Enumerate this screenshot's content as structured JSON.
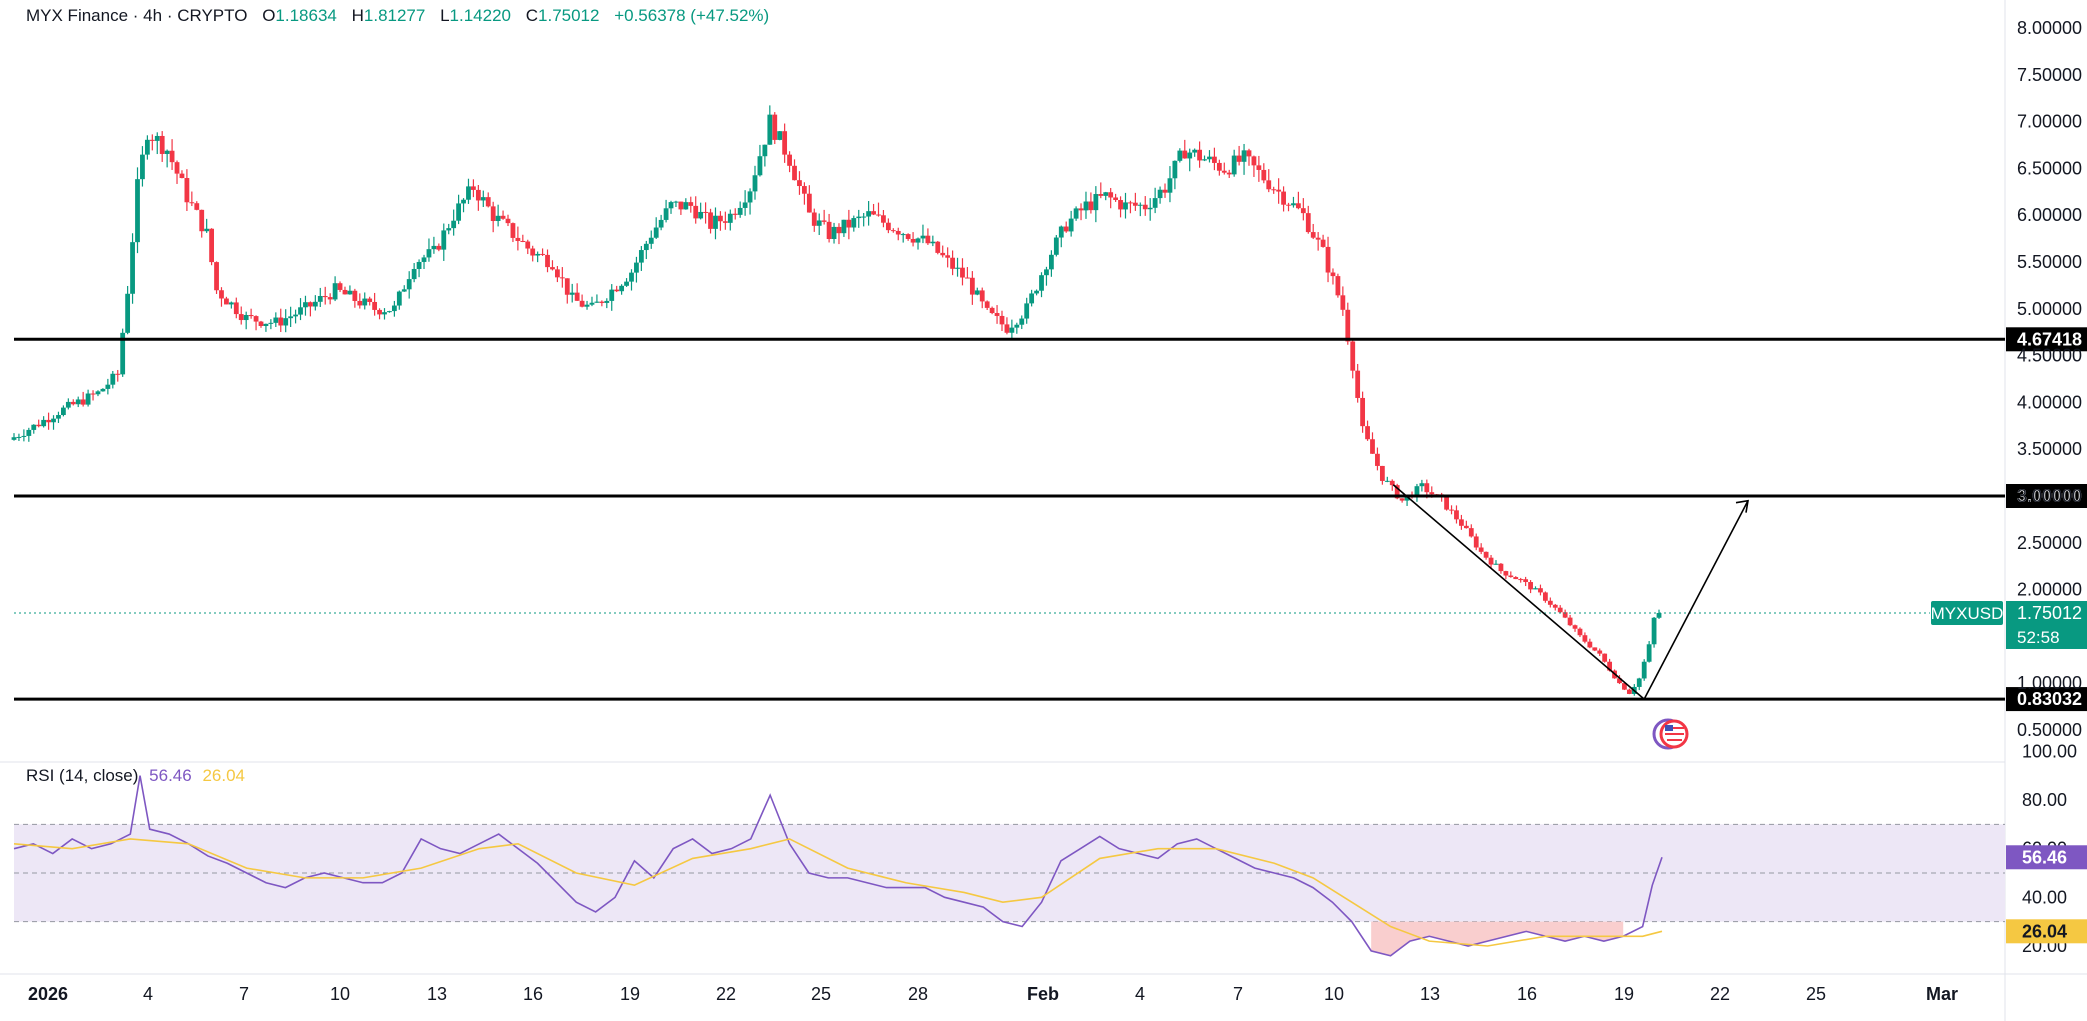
{
  "header": {
    "symbol": "MYX Finance",
    "interval": "4h",
    "exchange": "CRYPTO",
    "open_label": "O",
    "open": "1.18634",
    "high_label": "H",
    "high": "1.81277",
    "low_label": "L",
    "low": "1.14220",
    "close_label": "C",
    "close": "1.75012",
    "change": "+0.56378 (+47.52%)"
  },
  "price_badge": {
    "ticker": "MYXUSD",
    "price": "1.75012",
    "countdown": "52:58"
  },
  "rsi_legend": {
    "name": "RSI (14, close)",
    "rsi_value": "56.46",
    "ma_value": "26.04"
  },
  "colors": {
    "up": "#089981",
    "down": "#f23645",
    "level_line": "#000000",
    "rsi_line": "#7e57c2",
    "rsi_ma": "#f5c842",
    "rsi_band": "#ede7f6",
    "oversold_fill": "#f8c9c9"
  },
  "chart_data": [
    {
      "type": "candlestick",
      "x_ticks": [
        "2026",
        "4",
        "7",
        "10",
        "13",
        "16",
        "19",
        "22",
        "25",
        "28",
        "Feb",
        "4",
        "7",
        "10",
        "13",
        "16",
        "19",
        "22",
        "25",
        "Mar"
      ],
      "y_ticks": [
        "8.00000",
        "7.50000",
        "7.00000",
        "6.50000",
        "6.00000",
        "5.50000",
        "5.00000",
        "4.50000",
        "4.00000",
        "3.50000",
        "3.00000",
        "2.50000",
        "2.00000",
        "1.50000",
        "1.00000",
        "0.50000"
      ],
      "ylim": [
        0.3,
        8.1
      ],
      "price_path": [
        [
          1.5,
          3.6
        ],
        [
          2.8,
          3.75
        ],
        [
          4.0,
          3.9
        ],
        [
          5.0,
          4.0
        ],
        [
          6.0,
          4.1
        ],
        [
          7.0,
          4.3
        ],
        [
          7.5,
          5.2
        ],
        [
          8.0,
          6.3
        ],
        [
          8.5,
          6.9
        ],
        [
          9.5,
          6.7
        ],
        [
          10.5,
          6.2
        ],
        [
          11.5,
          5.8
        ],
        [
          12.0,
          5.2
        ],
        [
          13.5,
          4.9
        ],
        [
          15.0,
          4.85
        ],
        [
          16.5,
          5.0
        ],
        [
          18.0,
          5.2
        ],
        [
          19.0,
          5.1
        ],
        [
          20.0,
          5.0
        ],
        [
          21.0,
          5.0
        ],
        [
          22.0,
          5.5
        ],
        [
          23.0,
          5.6
        ],
        [
          24.0,
          6.0
        ],
        [
          25.0,
          6.3
        ],
        [
          26.0,
          6.0
        ],
        [
          27.0,
          5.8
        ],
        [
          28.0,
          5.6
        ],
        [
          29.0,
          5.5
        ],
        [
          30.0,
          5.1
        ],
        [
          31.0,
          5.0
        ],
        [
          32.0,
          5.2
        ],
        [
          33.0,
          5.4
        ],
        [
          34.0,
          5.8
        ],
        [
          35.0,
          6.1
        ],
        [
          36.0,
          6.1
        ],
        [
          37.0,
          5.9
        ],
        [
          38.0,
          6.0
        ],
        [
          39.0,
          6.3
        ],
        [
          40.0,
          7.0
        ],
        [
          41.0,
          6.6
        ],
        [
          42.0,
          6.0
        ],
        [
          43.0,
          5.8
        ],
        [
          44.0,
          5.9
        ],
        [
          45.0,
          6.0
        ],
        [
          46.0,
          5.9
        ],
        [
          47.0,
          5.8
        ],
        [
          48.0,
          5.7
        ],
        [
          49.0,
          5.5
        ],
        [
          50.0,
          5.3
        ],
        [
          51.0,
          4.95
        ],
        [
          52.0,
          4.8
        ],
        [
          53.0,
          5.0
        ],
        [
          54.0,
          5.5
        ],
        [
          55.0,
          5.9
        ],
        [
          56.0,
          6.1
        ],
        [
          57.0,
          6.2
        ],
        [
          58.0,
          6.1
        ],
        [
          59.0,
          6.1
        ],
        [
          60.0,
          6.3
        ],
        [
          61.0,
          6.7
        ],
        [
          62.0,
          6.6
        ],
        [
          63.0,
          6.5
        ],
        [
          64.0,
          6.6
        ],
        [
          65.0,
          6.4
        ],
        [
          66.0,
          6.2
        ],
        [
          67.0,
          6.0
        ],
        [
          68.0,
          5.6
        ],
        [
          69.0,
          5.0
        ],
        [
          69.5,
          4.4
        ],
        [
          70.0,
          3.7
        ],
        [
          71.0,
          3.2
        ],
        [
          72.0,
          2.95
        ],
        [
          73.0,
          3.1
        ],
        [
          74.0,
          2.95
        ],
        [
          75.0,
          2.7
        ],
        [
          76.0,
          2.4
        ],
        [
          77.0,
          2.2
        ],
        [
          78.0,
          2.1
        ],
        [
          79.0,
          1.95
        ],
        [
          80.0,
          1.75
        ],
        [
          81.0,
          1.5
        ],
        [
          82.0,
          1.3
        ],
        [
          83.0,
          1.0
        ],
        [
          83.5,
          0.9
        ],
        [
          84.0,
          1.05
        ],
        [
          84.5,
          1.4
        ],
        [
          84.8,
          1.75
        ]
      ],
      "current_price": 1.75012,
      "levels": [
        4.67418,
        3.0,
        0.83032
      ],
      "level_labels": [
        "4.67418",
        "3.00000",
        "0.83032"
      ],
      "trendline": [
        [
          71.3,
          3.12
        ],
        [
          84.0,
          0.83
        ]
      ],
      "projection": [
        [
          84.0,
          0.83
        ],
        [
          88.6,
          2.95
        ]
      ]
    },
    {
      "type": "line",
      "name": "RSI (14, close)",
      "y_ticks": [
        "100.00",
        "80.00",
        "60.00",
        "40.00",
        "20.00"
      ],
      "ylim": [
        8,
        100
      ],
      "band": [
        30,
        70
      ],
      "midline": 50,
      "rsi_path": [
        [
          0,
          60
        ],
        [
          1,
          62
        ],
        [
          2,
          58
        ],
        [
          3,
          64
        ],
        [
          4,
          60
        ],
        [
          5,
          62
        ],
        [
          6,
          66
        ],
        [
          6.5,
          90
        ],
        [
          7,
          68
        ],
        [
          8,
          66
        ],
        [
          9,
          62
        ],
        [
          10,
          57
        ],
        [
          11,
          54
        ],
        [
          12,
          50
        ],
        [
          13,
          46
        ],
        [
          14,
          44
        ],
        [
          15,
          48
        ],
        [
          16,
          50
        ],
        [
          17,
          48
        ],
        [
          18,
          46
        ],
        [
          19,
          46
        ],
        [
          20,
          50
        ],
        [
          21,
          64
        ],
        [
          22,
          60
        ],
        [
          23,
          58
        ],
        [
          24,
          62
        ],
        [
          25,
          66
        ],
        [
          26,
          60
        ],
        [
          27,
          54
        ],
        [
          28,
          46
        ],
        [
          29,
          38
        ],
        [
          30,
          34
        ],
        [
          31,
          40
        ],
        [
          32,
          55
        ],
        [
          33,
          48
        ],
        [
          34,
          60
        ],
        [
          35,
          64
        ],
        [
          36,
          58
        ],
        [
          37,
          60
        ],
        [
          38,
          64
        ],
        [
          39,
          82
        ],
        [
          40,
          62
        ],
        [
          41,
          50
        ],
        [
          42,
          48
        ],
        [
          43,
          48
        ],
        [
          44,
          46
        ],
        [
          45,
          44
        ],
        [
          46,
          44
        ],
        [
          47,
          44
        ],
        [
          48,
          40
        ],
        [
          49,
          38
        ],
        [
          50,
          36
        ],
        [
          51,
          30
        ],
        [
          52,
          28
        ],
        [
          53,
          38
        ],
        [
          54,
          55
        ],
        [
          55,
          60
        ],
        [
          56,
          65
        ],
        [
          57,
          60
        ],
        [
          58,
          58
        ],
        [
          59,
          56
        ],
        [
          60,
          62
        ],
        [
          61,
          64
        ],
        [
          62,
          60
        ],
        [
          63,
          56
        ],
        [
          64,
          52
        ],
        [
          65,
          50
        ],
        [
          66,
          48
        ],
        [
          67,
          44
        ],
        [
          68,
          38
        ],
        [
          69,
          30
        ],
        [
          70,
          18
        ],
        [
          71,
          16
        ],
        [
          72,
          22
        ],
        [
          73,
          24
        ],
        [
          74,
          22
        ],
        [
          75,
          20
        ],
        [
          76,
          22
        ],
        [
          77,
          24
        ],
        [
          78,
          26
        ],
        [
          79,
          24
        ],
        [
          80,
          22
        ],
        [
          81,
          24
        ],
        [
          82,
          22
        ],
        [
          83,
          24
        ],
        [
          84,
          28
        ],
        [
          84.5,
          45
        ],
        [
          85.0,
          56.46
        ]
      ],
      "ma_path": [
        [
          0,
          62
        ],
        [
          3,
          60
        ],
        [
          6,
          64
        ],
        [
          9,
          62
        ],
        [
          12,
          52
        ],
        [
          15,
          48
        ],
        [
          18,
          48
        ],
        [
          21,
          52
        ],
        [
          24,
          60
        ],
        [
          26,
          62
        ],
        [
          29,
          50
        ],
        [
          32,
          45
        ],
        [
          35,
          56
        ],
        [
          38,
          60
        ],
        [
          40,
          64
        ],
        [
          43,
          52
        ],
        [
          46,
          46
        ],
        [
          49,
          42
        ],
        [
          51,
          38
        ],
        [
          53,
          40
        ],
        [
          56,
          56
        ],
        [
          59,
          60
        ],
        [
          62,
          60
        ],
        [
          65,
          54
        ],
        [
          67,
          48
        ],
        [
          69,
          38
        ],
        [
          71,
          28
        ],
        [
          73,
          22
        ],
        [
          76,
          20
        ],
        [
          79,
          24
        ],
        [
          82,
          24
        ],
        [
          84,
          24
        ],
        [
          85,
          26.04
        ]
      ],
      "current_rsi": 56.46,
      "current_ma": 26.04,
      "rsi_label": "56.46",
      "ma_label": "26.04"
    }
  ]
}
